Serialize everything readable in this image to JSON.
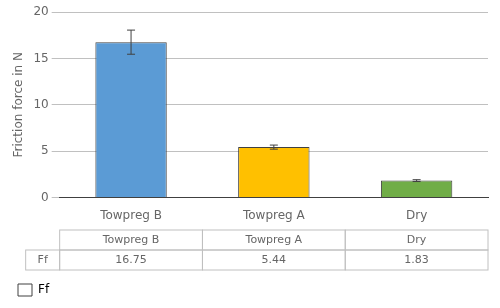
{
  "chart_data": {
    "type": "bar",
    "categories": [
      "Towpreg B",
      "Towpreg A",
      "Dry"
    ],
    "series": [
      {
        "name": "Ff",
        "values": [
          16.75,
          5.44,
          1.83
        ],
        "errors": [
          1.3,
          0.22,
          0.1
        ],
        "colors": [
          "#5B9BD5",
          "#FFC000",
          "#70AD47"
        ]
      }
    ],
    "ylabel": "Friction force in N",
    "ylim": [
      0,
      20.0
    ],
    "yticks": [
      0.0,
      5.0,
      10.0,
      15.0,
      20.0
    ],
    "grid": true,
    "legend": "lower left",
    "table": {
      "row_label": "Ff",
      "values": [
        "16.75",
        "5.44",
        "1.83"
      ]
    }
  }
}
